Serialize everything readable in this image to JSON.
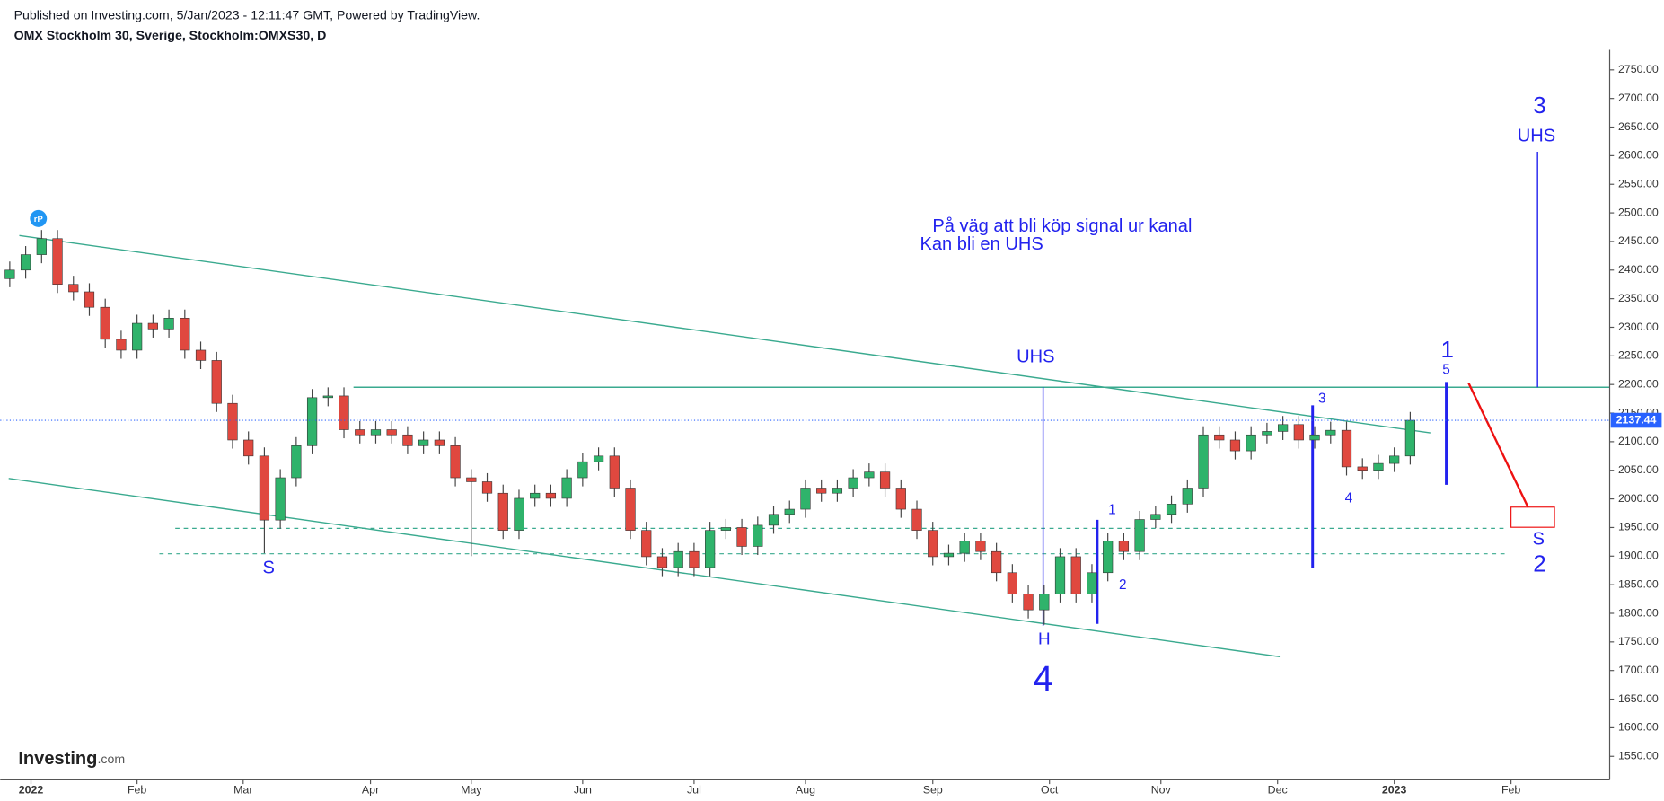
{
  "header": {
    "published": "Published on Investing.com, 5/Jan/2023 - 12:11:47 GMT, Powered by TradingView.",
    "symbol": "OMX Stockholm 30, Sverige, Stockholm:OMXS30, D"
  },
  "logo": {
    "name": "Investing",
    "suffix": ".com"
  },
  "icon": "rP",
  "annotations": {
    "note_line1": "På väg att bli köp signal ur kanal",
    "note_line2": "Kan bli en UHS",
    "uhs_neck": "UHS",
    "left_s": "S",
    "head": "H",
    "wave4_big": "4",
    "w1": "1",
    "w2": "2",
    "w3": "3",
    "w4": "4",
    "w5": "5",
    "big1": "1",
    "big3": "3",
    "uhs_target": "UHS",
    "right_s": "S",
    "big2": "2"
  },
  "chart_data": {
    "type": "candlestick",
    "x": [
      0,
      3,
      6,
      9,
      12,
      15,
      18,
      21,
      24,
      27,
      30,
      33,
      36,
      39,
      42,
      45,
      48,
      51,
      54,
      57,
      60,
      63,
      66,
      69,
      72,
      75,
      78,
      81,
      84,
      87,
      90,
      93,
      96,
      99,
      102,
      105,
      108,
      111,
      114,
      117,
      120,
      123,
      126,
      129,
      132,
      135,
      138,
      141,
      144,
      147,
      150,
      153,
      156,
      159,
      162,
      165,
      168,
      171,
      174,
      177,
      180,
      183,
      186,
      189,
      192,
      195,
      198,
      201,
      204,
      207,
      210,
      213,
      216,
      219,
      222,
      225,
      228,
      231,
      234,
      237,
      240,
      243,
      246,
      249,
      252,
      255,
      258,
      261,
      264
    ],
    "open": [
      2385,
      2400,
      2427,
      2455,
      2375,
      2362,
      2335,
      2279,
      2260,
      2307,
      2297,
      2316,
      2260,
      2242,
      2167,
      2103,
      2075,
      1963,
      2037,
      2093,
      2177,
      2180,
      2121,
      2112,
      2121,
      2112,
      2093,
      2103,
      2093,
      2037,
      2030,
      2010,
      1945,
      2001,
      2010,
      2001,
      2037,
      2065,
      2075,
      2019,
      1945,
      1899,
      1880,
      1908,
      1880,
      1945,
      1950,
      1917,
      1954,
      1973,
      1982,
      2019,
      2010,
      2019,
      2037,
      2047,
      2019,
      1982,
      1945,
      1899,
      1905,
      1926,
      1908,
      1871,
      1834,
      1806,
      1834,
      1899,
      1834,
      1871,
      1926,
      1908,
      1964,
      1973,
      1991,
      2019,
      2112,
      2103,
      2084,
      2112,
      2118,
      2130,
      2103,
      2112,
      2120,
      2056,
      2050,
      2062,
      2075
    ],
    "high": [
      2415,
      2442,
      2470,
      2470,
      2390,
      2377,
      2350,
      2294,
      2322,
      2322,
      2331,
      2331,
      2275,
      2257,
      2182,
      2118,
      2090,
      2052,
      2108,
      2192,
      2195,
      2195,
      2136,
      2136,
      2136,
      2127,
      2118,
      2118,
      2108,
      2052,
      2045,
      2025,
      2016,
      2025,
      2025,
      2052,
      2080,
      2090,
      2090,
      2034,
      1960,
      1914,
      1923,
      1923,
      1960,
      1965,
      1965,
      1969,
      1988,
      1997,
      2034,
      2034,
      2034,
      2052,
      2062,
      2062,
      2034,
      1997,
      1960,
      1920,
      1941,
      1941,
      1923,
      1886,
      1849,
      1849,
      1914,
      1914,
      1886,
      1941,
      1941,
      1979,
      1988,
      2006,
      2034,
      2127,
      2127,
      2118,
      2127,
      2133,
      2145,
      2145,
      2127,
      2135,
      2135,
      2071,
      2077,
      2090,
      2152
    ],
    "low": [
      2370,
      2385,
      2412,
      2360,
      2347,
      2320,
      2264,
      2245,
      2245,
      2282,
      2282,
      2245,
      2227,
      2152,
      2088,
      2060,
      1905,
      1948,
      2022,
      2078,
      2162,
      2106,
      2097,
      2097,
      2097,
      2078,
      2078,
      2078,
      2022,
      1900,
      1995,
      1930,
      1930,
      1986,
      1986,
      1986,
      2022,
      2050,
      2004,
      1930,
      1884,
      1865,
      1865,
      1865,
      1865,
      1930,
      1902,
      1902,
      1939,
      1958,
      1967,
      1995,
      1995,
      2004,
      2022,
      2004,
      1967,
      1930,
      1884,
      1884,
      1890,
      1893,
      1856,
      1819,
      1791,
      1780,
      1819,
      1819,
      1819,
      1856,
      1893,
      1893,
      1949,
      1958,
      1976,
      2004,
      2088,
      2069,
      2069,
      2097,
      2103,
      2088,
      2088,
      2097,
      2041,
      2035,
      2035,
      2047,
      2060
    ],
    "close": [
      2400,
      2427,
      2455,
      2375,
      2362,
      2335,
      2279,
      2260,
      2307,
      2297,
      2316,
      2260,
      2242,
      2167,
      2103,
      2075,
      1963,
      2037,
      2093,
      2177,
      2180,
      2121,
      2112,
      2121,
      2112,
      2093,
      2103,
      2093,
      2037,
      2030,
      2010,
      1945,
      2001,
      2010,
      2001,
      2037,
      2065,
      2075,
      2019,
      1945,
      1899,
      1880,
      1908,
      1880,
      1945,
      1950,
      1917,
      1954,
      1973,
      1982,
      2019,
      2010,
      2019,
      2037,
      2047,
      2019,
      1982,
      1945,
      1899,
      1905,
      1926,
      1908,
      1871,
      1834,
      1806,
      1834,
      1899,
      1834,
      1871,
      1926,
      1908,
      1964,
      1973,
      1991,
      2019,
      2112,
      2103,
      2084,
      2112,
      2118,
      2130,
      2103,
      2112,
      2120,
      2056,
      2050,
      2062,
      2075,
      2137.44
    ],
    "up_color": "#2fb36b",
    "down_color": "#e0483f",
    "last_price": 2137.44,
    "last_price_color": "#2962ff",
    "xlim": [
      -1.8,
      301.6
    ],
    "xticks": [
      {
        "value": 4,
        "label": "2022"
      },
      {
        "value": 24,
        "label": "Feb"
      },
      {
        "value": 44,
        "label": "Mar"
      },
      {
        "value": 68,
        "label": "Apr"
      },
      {
        "value": 87,
        "label": "May"
      },
      {
        "value": 108,
        "label": "Jun"
      },
      {
        "value": 129,
        "label": "Jul"
      },
      {
        "value": 150,
        "label": "Aug"
      },
      {
        "value": 174,
        "label": "Sep"
      },
      {
        "value": 196,
        "label": "Oct"
      },
      {
        "value": 217,
        "label": "Nov"
      },
      {
        "value": 239,
        "label": "Dec"
      },
      {
        "value": 261,
        "label": "2023"
      },
      {
        "value": 283,
        "label": "Feb"
      }
    ],
    "ylim": [
      1509,
      2785
    ],
    "yticks": [
      {
        "value": 1550,
        "label": "1550.00"
      },
      {
        "value": 1600,
        "label": "1600.00"
      },
      {
        "value": 1650,
        "label": "1650.00"
      },
      {
        "value": 1700,
        "label": "1700.00"
      },
      {
        "value": 1750,
        "label": "1750.00"
      },
      {
        "value": 1800,
        "label": "1800.00"
      },
      {
        "value": 1850,
        "label": "1850.00"
      },
      {
        "value": 1900,
        "label": "1900.00"
      },
      {
        "value": 1950,
        "label": "1950.00"
      },
      {
        "value": 2000,
        "label": "2000.00"
      },
      {
        "value": 2050,
        "label": "2050.00"
      },
      {
        "value": 2100,
        "label": "2100.00"
      },
      {
        "value": 2150,
        "label": "2150.00"
      },
      {
        "value": 2200,
        "label": "2200.00"
      },
      {
        "value": 2250,
        "label": "2250.00"
      },
      {
        "value": 2300,
        "label": "2300.00"
      },
      {
        "value": 2350,
        "label": "2350.00"
      },
      {
        "value": 2400,
        "label": "2400.00"
      },
      {
        "value": 2450,
        "label": "2450.00"
      },
      {
        "value": 2500,
        "label": "2500.00"
      },
      {
        "value": 2550,
        "label": "2550.00"
      },
      {
        "value": 2600,
        "label": "2600.00"
      },
      {
        "value": 2650,
        "label": "2650.00"
      },
      {
        "value": 2700,
        "label": "2700.00"
      },
      {
        "value": 2750,
        "label": "2750.00"
      }
    ],
    "grid": false
  }
}
